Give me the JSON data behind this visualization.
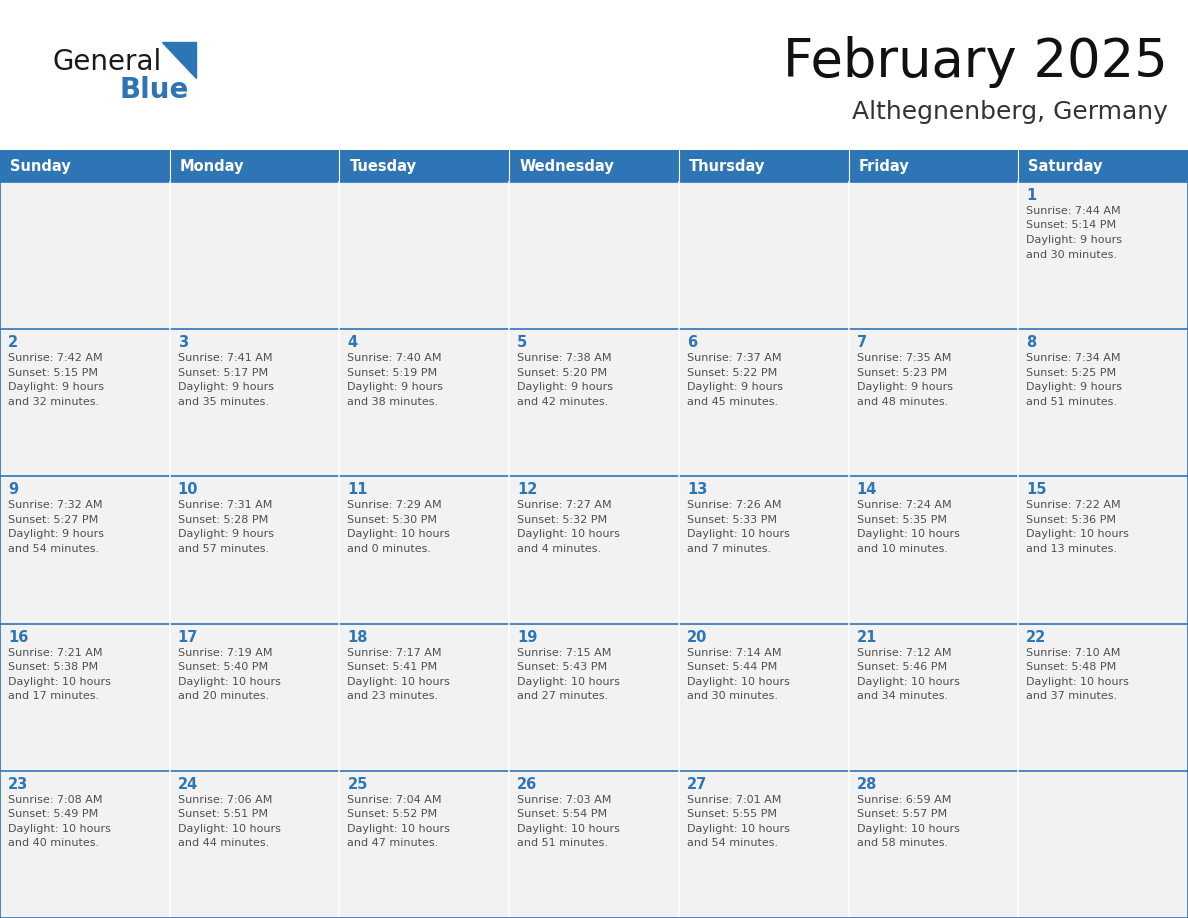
{
  "title": "February 2025",
  "subtitle": "Althegnenberg, Germany",
  "header_bg": "#2E75B6",
  "header_text_color": "#FFFFFF",
  "cell_bg": "#F2F2F2",
  "day_number_color": "#2E75B6",
  "text_color": "#505050",
  "border_top_color": "#2E75B6",
  "border_outer_color": "#AAAAAA",
  "days_of_week": [
    "Sunday",
    "Monday",
    "Tuesday",
    "Wednesday",
    "Thursday",
    "Friday",
    "Saturday"
  ],
  "logo_general_color": "#1A1A1A",
  "logo_blue_color": "#2E75B6",
  "calendar_data": [
    [
      {
        "day": null,
        "lines": []
      },
      {
        "day": null,
        "lines": []
      },
      {
        "day": null,
        "lines": []
      },
      {
        "day": null,
        "lines": []
      },
      {
        "day": null,
        "lines": []
      },
      {
        "day": null,
        "lines": []
      },
      {
        "day": 1,
        "lines": [
          "Sunrise: 7:44 AM",
          "Sunset: 5:14 PM",
          "Daylight: 9 hours",
          "and 30 minutes."
        ]
      }
    ],
    [
      {
        "day": 2,
        "lines": [
          "Sunrise: 7:42 AM",
          "Sunset: 5:15 PM",
          "Daylight: 9 hours",
          "and 32 minutes."
        ]
      },
      {
        "day": 3,
        "lines": [
          "Sunrise: 7:41 AM",
          "Sunset: 5:17 PM",
          "Daylight: 9 hours",
          "and 35 minutes."
        ]
      },
      {
        "day": 4,
        "lines": [
          "Sunrise: 7:40 AM",
          "Sunset: 5:19 PM",
          "Daylight: 9 hours",
          "and 38 minutes."
        ]
      },
      {
        "day": 5,
        "lines": [
          "Sunrise: 7:38 AM",
          "Sunset: 5:20 PM",
          "Daylight: 9 hours",
          "and 42 minutes."
        ]
      },
      {
        "day": 6,
        "lines": [
          "Sunrise: 7:37 AM",
          "Sunset: 5:22 PM",
          "Daylight: 9 hours",
          "and 45 minutes."
        ]
      },
      {
        "day": 7,
        "lines": [
          "Sunrise: 7:35 AM",
          "Sunset: 5:23 PM",
          "Daylight: 9 hours",
          "and 48 minutes."
        ]
      },
      {
        "day": 8,
        "lines": [
          "Sunrise: 7:34 AM",
          "Sunset: 5:25 PM",
          "Daylight: 9 hours",
          "and 51 minutes."
        ]
      }
    ],
    [
      {
        "day": 9,
        "lines": [
          "Sunrise: 7:32 AM",
          "Sunset: 5:27 PM",
          "Daylight: 9 hours",
          "and 54 minutes."
        ]
      },
      {
        "day": 10,
        "lines": [
          "Sunrise: 7:31 AM",
          "Sunset: 5:28 PM",
          "Daylight: 9 hours",
          "and 57 minutes."
        ]
      },
      {
        "day": 11,
        "lines": [
          "Sunrise: 7:29 AM",
          "Sunset: 5:30 PM",
          "Daylight: 10 hours",
          "and 0 minutes."
        ]
      },
      {
        "day": 12,
        "lines": [
          "Sunrise: 7:27 AM",
          "Sunset: 5:32 PM",
          "Daylight: 10 hours",
          "and 4 minutes."
        ]
      },
      {
        "day": 13,
        "lines": [
          "Sunrise: 7:26 AM",
          "Sunset: 5:33 PM",
          "Daylight: 10 hours",
          "and 7 minutes."
        ]
      },
      {
        "day": 14,
        "lines": [
          "Sunrise: 7:24 AM",
          "Sunset: 5:35 PM",
          "Daylight: 10 hours",
          "and 10 minutes."
        ]
      },
      {
        "day": 15,
        "lines": [
          "Sunrise: 7:22 AM",
          "Sunset: 5:36 PM",
          "Daylight: 10 hours",
          "and 13 minutes."
        ]
      }
    ],
    [
      {
        "day": 16,
        "lines": [
          "Sunrise: 7:21 AM",
          "Sunset: 5:38 PM",
          "Daylight: 10 hours",
          "and 17 minutes."
        ]
      },
      {
        "day": 17,
        "lines": [
          "Sunrise: 7:19 AM",
          "Sunset: 5:40 PM",
          "Daylight: 10 hours",
          "and 20 minutes."
        ]
      },
      {
        "day": 18,
        "lines": [
          "Sunrise: 7:17 AM",
          "Sunset: 5:41 PM",
          "Daylight: 10 hours",
          "and 23 minutes."
        ]
      },
      {
        "day": 19,
        "lines": [
          "Sunrise: 7:15 AM",
          "Sunset: 5:43 PM",
          "Daylight: 10 hours",
          "and 27 minutes."
        ]
      },
      {
        "day": 20,
        "lines": [
          "Sunrise: 7:14 AM",
          "Sunset: 5:44 PM",
          "Daylight: 10 hours",
          "and 30 minutes."
        ]
      },
      {
        "day": 21,
        "lines": [
          "Sunrise: 7:12 AM",
          "Sunset: 5:46 PM",
          "Daylight: 10 hours",
          "and 34 minutes."
        ]
      },
      {
        "day": 22,
        "lines": [
          "Sunrise: 7:10 AM",
          "Sunset: 5:48 PM",
          "Daylight: 10 hours",
          "and 37 minutes."
        ]
      }
    ],
    [
      {
        "day": 23,
        "lines": [
          "Sunrise: 7:08 AM",
          "Sunset: 5:49 PM",
          "Daylight: 10 hours",
          "and 40 minutes."
        ]
      },
      {
        "day": 24,
        "lines": [
          "Sunrise: 7:06 AM",
          "Sunset: 5:51 PM",
          "Daylight: 10 hours",
          "and 44 minutes."
        ]
      },
      {
        "day": 25,
        "lines": [
          "Sunrise: 7:04 AM",
          "Sunset: 5:52 PM",
          "Daylight: 10 hours",
          "and 47 minutes."
        ]
      },
      {
        "day": 26,
        "lines": [
          "Sunrise: 7:03 AM",
          "Sunset: 5:54 PM",
          "Daylight: 10 hours",
          "and 51 minutes."
        ]
      },
      {
        "day": 27,
        "lines": [
          "Sunrise: 7:01 AM",
          "Sunset: 5:55 PM",
          "Daylight: 10 hours",
          "and 54 minutes."
        ]
      },
      {
        "day": 28,
        "lines": [
          "Sunrise: 6:59 AM",
          "Sunset: 5:57 PM",
          "Daylight: 10 hours",
          "and 58 minutes."
        ]
      },
      {
        "day": null,
        "lines": []
      }
    ]
  ]
}
